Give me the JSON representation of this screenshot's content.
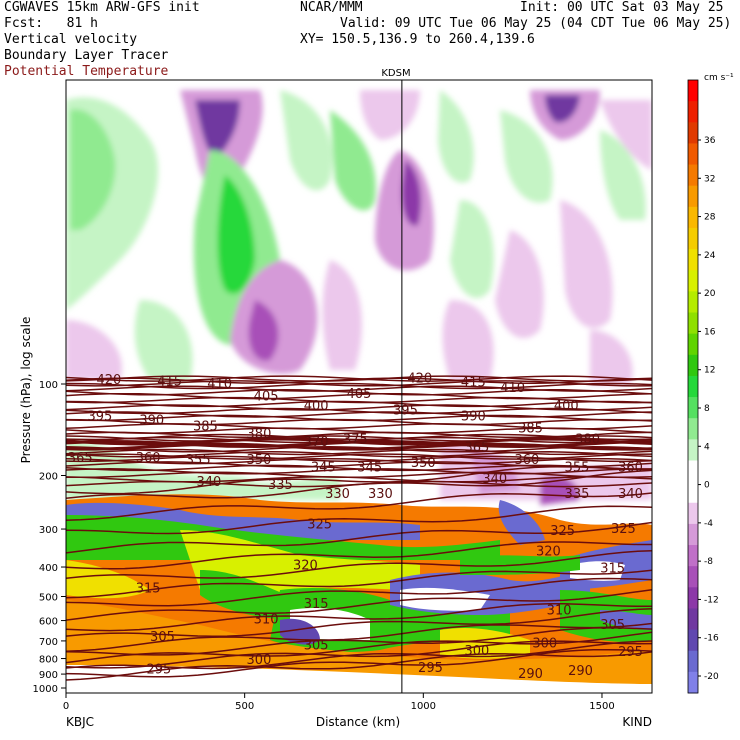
{
  "header": {
    "line1_left": "CGWAVES 15km ARW-GFS init",
    "line1_mid": "NCAR/MMM",
    "line1_right": "Init: 00 UTC Sat 03 May 25",
    "line2_left": "Fcst:   81 h",
    "line2_right": "Valid: 09 UTC Tue 06 May 25 (04 CDT Tue 06 May 25)",
    "line3_left": "Vertical velocity",
    "line3_right": "XY= 150.5,136.9 to 260.4,139.6",
    "line4_left": "Boundary Layer Tracer",
    "line5_left": "Potential Temperature"
  },
  "colors": {
    "theta": "#6b0d0d",
    "accent_red": "#8b1a1a"
  },
  "chart_data": {
    "type": "heatmap",
    "title": "Vertical velocity / Boundary Layer Tracer / Potential Temperature cross-section",
    "station_marker": "KDSM",
    "station_x_km": 940,
    "xlabel": "Distance (km)",
    "ylabel": "Pressure (hPa), log scale",
    "xlim": [
      0,
      1640
    ],
    "ylim": [
      1000,
      10
    ],
    "x_ticks": [
      0,
      500,
      1000,
      1500
    ],
    "x_tick_labels": [
      "0",
      "500",
      "1000",
      "1500"
    ],
    "y_ticks": [
      100,
      200,
      300,
      400,
      500,
      600,
      700,
      800,
      900,
      1000
    ],
    "y_tick_labels": [
      "100",
      "200",
      "300",
      "400",
      "500",
      "600",
      "700",
      "800",
      "900",
      "1000"
    ],
    "left_endpoint": "KBJC",
    "right_endpoint": "KIND",
    "colorbar": {
      "units": "cm s⁻¹",
      "labels": [
        "36",
        "32",
        "28",
        "24",
        "20",
        "16",
        "12",
        "8",
        "4",
        "0",
        "-4",
        "-8",
        "-12",
        "-16",
        "-20"
      ],
      "colors": [
        "#ff0000",
        "#ee2000",
        "#e03a00",
        "#f05a00",
        "#f57a00",
        "#f89a00",
        "#fab800",
        "#f5cc00",
        "#f0e000",
        "#d8f000",
        "#b5ec00",
        "#8fe000",
        "#60d400",
        "#30c810",
        "#25d83a",
        "#55e060",
        "#90ea90",
        "#c5f4c5",
        "#ffffff",
        "#ffffff",
        "#ecc8ec",
        "#d59ad8",
        "#c070c8",
        "#a850b8",
        "#8c38a8",
        "#7038a0",
        "#6048b0",
        "#6a6ad0",
        "#8080e8"
      ]
    },
    "theta_levels_labeled": [
      290,
      295,
      300,
      305,
      310,
      315,
      320,
      325,
      330,
      335,
      340,
      345,
      350,
      355,
      360,
      365,
      370,
      375,
      380,
      385,
      390,
      395,
      400,
      405,
      410,
      415,
      420
    ],
    "theta_labels": [
      {
        "text": "420",
        "x": 120,
        "p": 97
      },
      {
        "text": "415",
        "x": 290,
        "p": 98
      },
      {
        "text": "410",
        "x": 430,
        "p": 100
      },
      {
        "text": "405",
        "x": 560,
        "p": 110
      },
      {
        "text": "400",
        "x": 700,
        "p": 118
      },
      {
        "text": "405",
        "x": 820,
        "p": 108
      },
      {
        "text": "420",
        "x": 990,
        "p": 96
      },
      {
        "text": "415",
        "x": 1140,
        "p": 99
      },
      {
        "text": "410",
        "x": 1250,
        "p": 103
      },
      {
        "text": "400",
        "x": 1400,
        "p": 118
      },
      {
        "text": "395",
        "x": 95,
        "p": 128
      },
      {
        "text": "390",
        "x": 240,
        "p": 132
      },
      {
        "text": "385",
        "x": 390,
        "p": 138
      },
      {
        "text": "380",
        "x": 540,
        "p": 146
      },
      {
        "text": "370",
        "x": 700,
        "p": 155
      },
      {
        "text": "375",
        "x": 810,
        "p": 152
      },
      {
        "text": "395",
        "x": 950,
        "p": 122
      },
      {
        "text": "390",
        "x": 1140,
        "p": 128
      },
      {
        "text": "385",
        "x": 1300,
        "p": 140
      },
      {
        "text": "380",
        "x": 1460,
        "p": 152
      },
      {
        "text": "365",
        "x": 40,
        "p": 175
      },
      {
        "text": "360",
        "x": 230,
        "p": 175
      },
      {
        "text": "355",
        "x": 370,
        "p": 178
      },
      {
        "text": "350",
        "x": 540,
        "p": 178
      },
      {
        "text": "345",
        "x": 720,
        "p": 188
      },
      {
        "text": "345",
        "x": 850,
        "p": 188
      },
      {
        "text": "350",
        "x": 1000,
        "p": 182
      },
      {
        "text": "365",
        "x": 1150,
        "p": 162
      },
      {
        "text": "360",
        "x": 1290,
        "p": 178
      },
      {
        "text": "355",
        "x": 1430,
        "p": 188
      },
      {
        "text": "360",
        "x": 1580,
        "p": 188
      },
      {
        "text": "340",
        "x": 400,
        "p": 210
      },
      {
        "text": "335",
        "x": 600,
        "p": 215
      },
      {
        "text": "330",
        "x": 760,
        "p": 230
      },
      {
        "text": "330",
        "x": 880,
        "p": 230
      },
      {
        "text": "340",
        "x": 1200,
        "p": 205
      },
      {
        "text": "335",
        "x": 1430,
        "p": 230
      },
      {
        "text": "340",
        "x": 1580,
        "p": 230
      },
      {
        "text": "325",
        "x": 710,
        "p": 290
      },
      {
        "text": "325",
        "x": 1390,
        "p": 305
      },
      {
        "text": "325",
        "x": 1560,
        "p": 300
      },
      {
        "text": "320",
        "x": 670,
        "p": 395
      },
      {
        "text": "320",
        "x": 1350,
        "p": 355
      },
      {
        "text": "315",
        "x": 230,
        "p": 470
      },
      {
        "text": "315",
        "x": 700,
        "p": 530
      },
      {
        "text": "315",
        "x": 1530,
        "p": 405
      },
      {
        "text": "310",
        "x": 560,
        "p": 595
      },
      {
        "text": "310",
        "x": 1380,
        "p": 555
      },
      {
        "text": "305",
        "x": 270,
        "p": 680
      },
      {
        "text": "305",
        "x": 700,
        "p": 725
      },
      {
        "text": "305",
        "x": 1530,
        "p": 620
      },
      {
        "text": "300",
        "x": 540,
        "p": 810
      },
      {
        "text": "300",
        "x": 1150,
        "p": 755
      },
      {
        "text": "300",
        "x": 1340,
        "p": 715
      },
      {
        "text": "295",
        "x": 260,
        "p": 870
      },
      {
        "text": "295",
        "x": 1020,
        "p": 860
      },
      {
        "text": "295",
        "x": 1580,
        "p": 760
      },
      {
        "text": "290",
        "x": 1300,
        "p": 900
      },
      {
        "text": "290",
        "x": 1440,
        "p": 880
      }
    ],
    "grid": false
  }
}
